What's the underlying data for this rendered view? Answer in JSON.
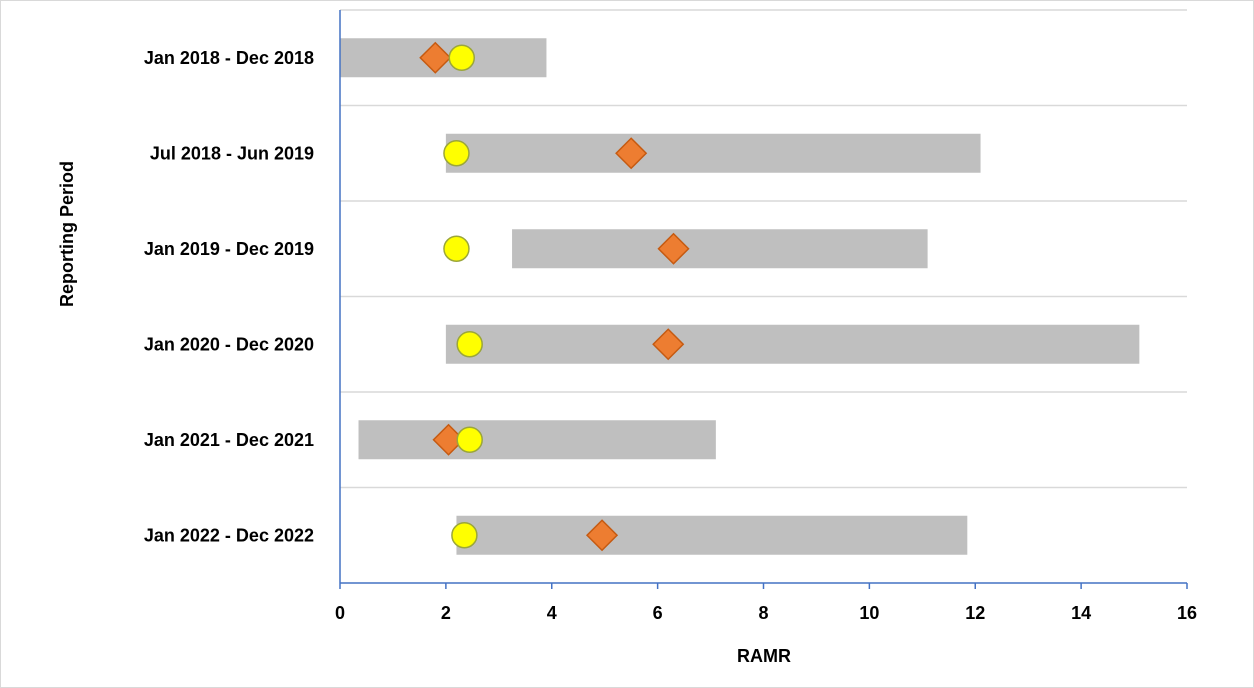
{
  "chart_data": {
    "type": "range-bar-with-markers",
    "title": "",
    "xlabel": "RAMR",
    "ylabel": "Reporting Period",
    "xlim": [
      0,
      16
    ],
    "x_ticks": [
      "0",
      "2",
      "4",
      "6",
      "8",
      "10",
      "12",
      "14",
      "16"
    ],
    "categories": [
      "Jan 2018 - Dec 2018",
      "Jul 2018 - Jun 2019",
      "Jan 2019 - Dec 2019",
      "Jan 2020 - Dec 2020",
      "Jan 2021 - Dec 2021",
      "Jan 2022 - Dec 2022"
    ],
    "series": [
      {
        "marker": "range-bar",
        "low": [
          0,
          2.0,
          3.25,
          2.0,
          0.35,
          2.2
        ],
        "high": [
          3.9,
          12.1,
          11.1,
          15.1,
          7.1,
          11.85
        ]
      },
      {
        "marker": "diamond",
        "values": [
          1.8,
          5.5,
          6.3,
          6.2,
          2.05,
          4.95
        ]
      },
      {
        "marker": "circle",
        "values": [
          2.3,
          2.2,
          2.2,
          2.45,
          2.45,
          2.35
        ]
      }
    ],
    "grid": "horizontal",
    "colors": {
      "bar": "#bfbfbf",
      "diamond_fill": "#ed7d31",
      "diamond_stroke": "#c55a11",
      "circle_fill": "#ffff00",
      "circle_stroke": "#9ba63a",
      "axis": "#4472c4",
      "grid": "#d9d9d9"
    }
  }
}
